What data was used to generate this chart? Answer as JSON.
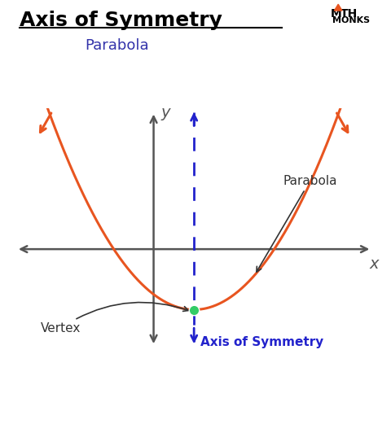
{
  "title": "Axis of Symmetry",
  "subtitle": "Parabola",
  "title_color": "#000000",
  "subtitle_color": "#3333aa",
  "bg_color": "#ffffff",
  "parabola_color": "#e85520",
  "axis_color": "#555555",
  "dashed_color": "#2222cc",
  "vertex_color": "#33cc66",
  "vertex_x": 1.0,
  "vertex_y": -1.5,
  "parabola_a": 0.38,
  "x_range": [
    -3.5,
    5.5
  ],
  "y_range": [
    -2.5,
    3.5
  ],
  "axis_label_x": "x",
  "axis_label_y": "y",
  "parabola_label": "Parabola",
  "vertex_label": "Vertex",
  "aos_label": "Axis of Symmetry",
  "logo_text1": "M▲TH",
  "logo_text2": "MONKS"
}
